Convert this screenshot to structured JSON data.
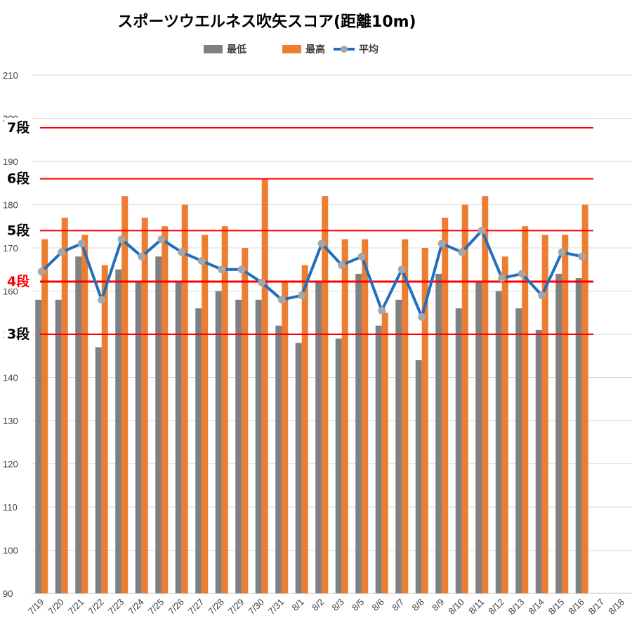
{
  "chart_data": {
    "type": "bar",
    "title": "スポーツウエルネス吹矢スコア(距離10m)",
    "xlabel": "",
    "ylabel": "",
    "ylim": [
      90,
      210
    ],
    "yticks": [
      90,
      100,
      110,
      120,
      130,
      140,
      150,
      160,
      170,
      180,
      190,
      200,
      210
    ],
    "ytick_labels": [
      "90",
      "100",
      "110",
      "120",
      "130",
      "140",
      "150",
      "160",
      "170",
      "180",
      "190",
      "200",
      "210"
    ],
    "grid": true,
    "legend_position": "top-center",
    "categories": [
      "7/19",
      "7/20",
      "7/21",
      "7/22",
      "7/23",
      "7/24",
      "7/25",
      "7/26",
      "7/27",
      "7/28",
      "7/29",
      "7/30",
      "7/31",
      "8/1",
      "8/2",
      "8/3",
      "8/5",
      "8/6",
      "8/7",
      "8/8",
      "8/9",
      "8/10",
      "8/11",
      "8/12",
      "8/13",
      "8/14",
      "8/15",
      "8/16",
      "8/17",
      "8/18"
    ],
    "series": [
      {
        "name": "最低",
        "type": "bar",
        "color": "#808080",
        "values": [
          158,
          158,
          168,
          147,
          165,
          162,
          168,
          162,
          156,
          160,
          158,
          158,
          152,
          148,
          162,
          149,
          164,
          152,
          158,
          144,
          164,
          156,
          162,
          160,
          156,
          151,
          164,
          163,
          null,
          null
        ]
      },
      {
        "name": "最高",
        "type": "bar",
        "color": "#ED7D31",
        "values": [
          172,
          177,
          173,
          166,
          182,
          177,
          175,
          180,
          173,
          175,
          170,
          186,
          162,
          166,
          182,
          172,
          172,
          155,
          172,
          170,
          177,
          180,
          182,
          168,
          175,
          173,
          173,
          180,
          null,
          null
        ]
      },
      {
        "name": "平均",
        "type": "line",
        "color": "#1F6FBE",
        "marker_color": "#A6A6A6",
        "values": [
          164.5,
          169,
          171,
          158,
          172,
          168,
          172,
          169,
          167,
          165,
          165,
          162,
          158,
          159,
          171,
          166,
          168,
          155.5,
          165,
          154,
          171,
          169,
          174,
          163,
          164,
          159,
          169,
          168,
          null,
          null
        ]
      }
    ],
    "reference_lines": [
      {
        "label": "7段",
        "value": 197.8
      },
      {
        "label": "6段",
        "value": 186.0
      },
      {
        "label": "5段",
        "value": 174.0
      },
      {
        "label": "4段",
        "value": 162.2
      },
      {
        "label": "3段",
        "value": 150.0
      }
    ],
    "reference_color": "#FF0000"
  }
}
